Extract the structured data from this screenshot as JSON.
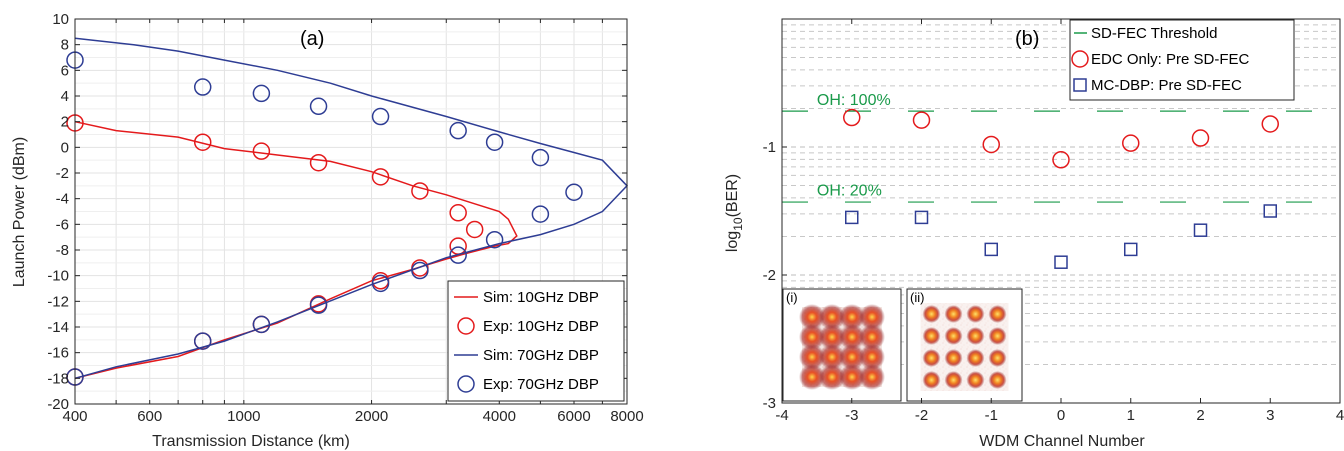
{
  "chart_data": [
    {
      "type": "line",
      "panel_label": "(a)",
      "xlabel": "Transmission Distance (km)",
      "ylabel": "Launch Power (dBm)",
      "x_scale": "log",
      "xlim": [
        400,
        8000
      ],
      "ylim": [
        -20,
        10
      ],
      "xticks": [
        400,
        600,
        1000,
        2000,
        4000,
        6000,
        8000
      ],
      "yticks": [
        -20,
        -18,
        -16,
        -14,
        -12,
        -10,
        -8,
        -6,
        -4,
        -2,
        0,
        2,
        4,
        6,
        8,
        10
      ],
      "grid": true,
      "legend_position": "bottom-right",
      "colors": {
        "red": "#e41a1c",
        "blue": "#2e3d94"
      },
      "series": [
        {
          "name": "Sim: 10GHz DBP",
          "style": "line",
          "color": "#e41a1c",
          "x": [
            400,
            500,
            700,
            900,
            1200,
            1600,
            2000,
            2500,
            3000,
            3500,
            4000,
            4200,
            4400,
            4200,
            3900,
            3400,
            3000,
            2500,
            2000,
            1600,
            1200,
            900,
            700,
            500,
            400
          ],
          "y": [
            2.0,
            1.3,
            0.8,
            -0.1,
            -0.6,
            -1.1,
            -1.9,
            -3.0,
            -3.7,
            -4.4,
            -5.0,
            -5.6,
            -6.9,
            -7.5,
            -7.7,
            -8.2,
            -8.7,
            -9.5,
            -10.4,
            -11.8,
            -13.7,
            -15.0,
            -16.3,
            -17.2,
            -18.0
          ]
        },
        {
          "name": "Exp: 10GHz DBP",
          "style": "marker-circle",
          "color": "#e41a1c",
          "x": [
            400,
            800,
            1100,
            1500,
            2100,
            2600,
            3200,
            3500,
            3200,
            2600,
            2100,
            1500,
            1100,
            800,
            400
          ],
          "y": [
            1.9,
            0.4,
            -0.3,
            -1.2,
            -2.3,
            -3.4,
            -5.1,
            -6.4,
            -7.7,
            -9.4,
            -10.4,
            -12.2,
            -13.8,
            -15.1,
            -17.9
          ]
        },
        {
          "name": "Sim: 70GHz DBP",
          "style": "line",
          "color": "#2e3d94",
          "x": [
            400,
            550,
            700,
            900,
            1200,
            1600,
            2000,
            3000,
            4000,
            5000,
            6000,
            7000,
            8000,
            7000,
            6000,
            5000,
            4000,
            3000,
            2000,
            1200,
            900,
            700,
            500,
            400
          ],
          "y": [
            8.5,
            8.0,
            7.5,
            6.8,
            6.0,
            5.0,
            4.0,
            2.4,
            1.2,
            0.3,
            -0.4,
            -1.0,
            -3.0,
            -5.0,
            -6.0,
            -6.8,
            -7.5,
            -8.6,
            -10.7,
            -13.6,
            -15.1,
            -16.1,
            -17.1,
            -18.0
          ]
        },
        {
          "name": "Exp: 70GHz DBP",
          "style": "marker-circle",
          "color": "#2e3d94",
          "x": [
            400,
            800,
            1100,
            1500,
            2100,
            3200,
            3900,
            5000,
            6000,
            5000,
            3900,
            3200,
            2600,
            2100,
            1500,
            1100,
            800,
            400
          ],
          "y": [
            6.8,
            4.7,
            4.2,
            3.2,
            2.4,
            1.3,
            0.4,
            -0.8,
            -3.5,
            -5.2,
            -7.2,
            -8.4,
            -9.6,
            -10.6,
            -12.3,
            -13.8,
            -15.1,
            -17.9
          ]
        }
      ]
    },
    {
      "type": "scatter",
      "panel_label": "(b)",
      "xlabel": "WDM Channel Number",
      "ylabel": "log10(BER)",
      "xlim": [
        -4,
        4
      ],
      "ylim": [
        -3,
        0
      ],
      "xticks": [
        -4,
        -3,
        -2,
        -1,
        0,
        1,
        2,
        3,
        4
      ],
      "yticks": [
        -3,
        -2,
        -1
      ],
      "grid": "minor-y-dashed",
      "legend_position": "top-right",
      "colors": {
        "red": "#e41a1c",
        "blue": "#2e3d94",
        "green": "#1a9a4a"
      },
      "series": [
        {
          "name": "SD-FEC Threshold",
          "style": "dashed-line",
          "color": "#1a9a4a",
          "y_values": [
            -0.72,
            -1.43
          ]
        },
        {
          "name": "EDC Only: Pre SD-FEC",
          "style": "marker-circle",
          "color": "#e41a1c",
          "x": [
            -3,
            -2,
            -1,
            0,
            1,
            2,
            3
          ],
          "y": [
            -0.77,
            -0.79,
            -0.98,
            -1.1,
            -0.97,
            -0.93,
            -0.82
          ]
        },
        {
          "name": "MC-DBP: Pre SD-FEC",
          "style": "marker-square",
          "color": "#2e3d94",
          "x": [
            -3,
            -2,
            -1,
            0,
            1,
            2,
            3
          ],
          "y": [
            -1.55,
            -1.55,
            -1.8,
            -1.9,
            -1.8,
            -1.65,
            -1.5
          ]
        }
      ],
      "annotations": [
        {
          "text": "OH: 100%",
          "x": -3.5,
          "y": -0.67,
          "color": "#1a9a4a"
        },
        {
          "text": "OH: 20%",
          "x": -3.5,
          "y": -1.38,
          "color": "#1a9a4a"
        }
      ],
      "insets": [
        {
          "label": "(i)",
          "description": "noisy 16QAM constellation"
        },
        {
          "label": "(ii)",
          "description": "clean 16QAM constellation"
        }
      ]
    }
  ]
}
